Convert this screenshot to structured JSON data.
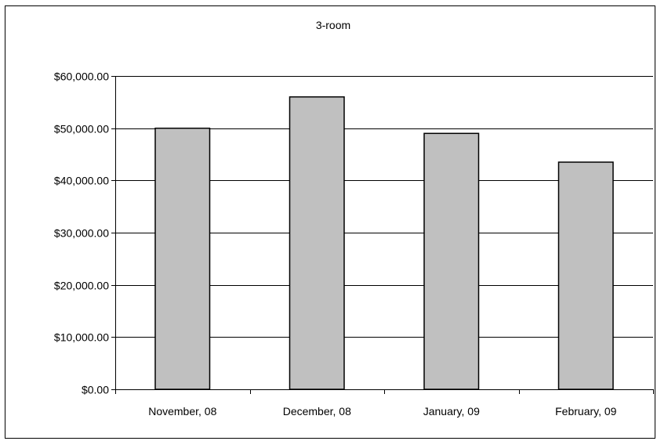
{
  "chart_data": {
    "type": "bar",
    "title": "3-room",
    "xlabel": "",
    "ylabel": "",
    "categories": [
      "November, 08",
      "December, 08",
      "January, 09",
      "February, 09"
    ],
    "series": [
      {
        "values": [
          50000,
          56000,
          49000,
          43500
        ]
      }
    ],
    "ylim": [
      0,
      60000
    ],
    "yticks": [
      0,
      10000,
      20000,
      30000,
      40000,
      50000,
      60000
    ],
    "ytick_labels": [
      "$0.00",
      "$10,000.00",
      "$20,000.00",
      "$30,000.00",
      "$40,000.00",
      "$50,000.00",
      "$60,000.00"
    ],
    "grid": true,
    "legend": "none",
    "bar_color": "#c0c0c0",
    "bar_edge_color": "#000000",
    "grid_color": "#000000"
  }
}
